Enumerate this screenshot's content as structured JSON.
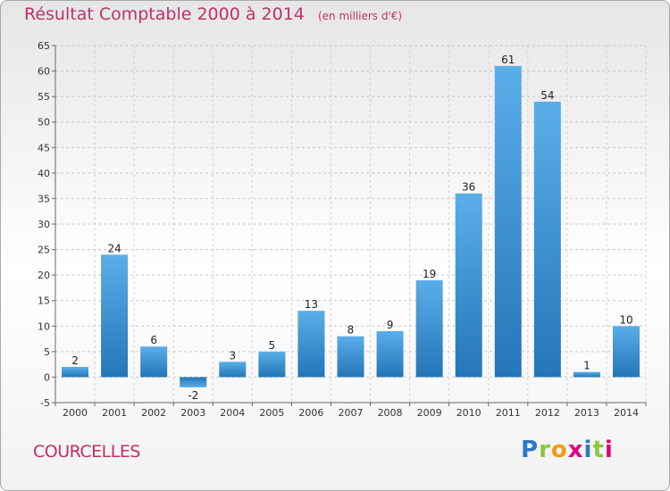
{
  "title": "Résultat Comptable 2000 à 2014",
  "unit": "(en milliers d'€)",
  "commune": "COURCELLES",
  "logo": "Proxiti",
  "colors": {
    "title": "#c0306b",
    "bar_light": "#5aaee8",
    "bar_dark": "#2476b8"
  },
  "chart_data": {
    "type": "bar",
    "title": "Résultat Comptable 2000 à 2014",
    "categories": [
      "2000",
      "2001",
      "2002",
      "2003",
      "2004",
      "2005",
      "2006",
      "2007",
      "2008",
      "2009",
      "2010",
      "2011",
      "2012",
      "2013",
      "2014"
    ],
    "values": [
      2,
      24,
      6,
      -2,
      3,
      5,
      13,
      8,
      9,
      19,
      36,
      61,
      54,
      1,
      10
    ],
    "ylim": [
      -5,
      65
    ],
    "yticks": [
      -5,
      0,
      5,
      10,
      15,
      20,
      25,
      30,
      35,
      40,
      45,
      50,
      55,
      60,
      65
    ],
    "grid": true
  }
}
